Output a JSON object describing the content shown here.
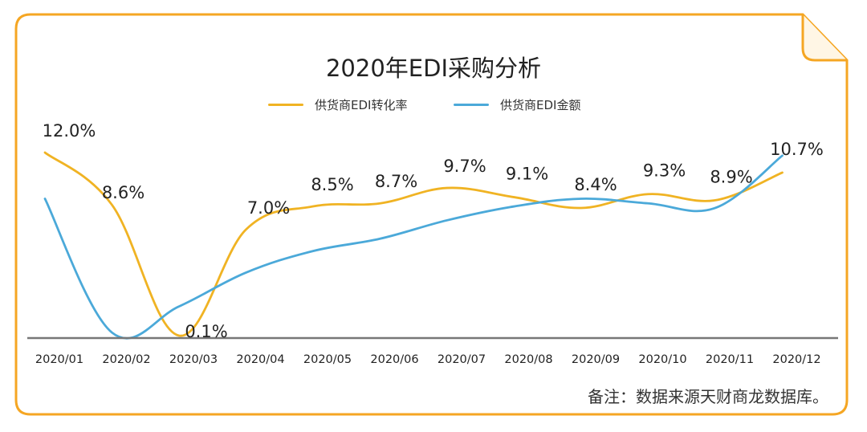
{
  "chart_data": {
    "type": "line",
    "title": "2020年EDI采购分析",
    "categories": [
      "2020/01",
      "2020/02",
      "2020/03",
      "2020/04",
      "2020/05",
      "2020/06",
      "2020/07",
      "2020/08",
      "2020/09",
      "2020/10",
      "2020/11",
      "2020/12"
    ],
    "series": [
      {
        "name": "供货商EDI转化率",
        "color": "#F0B323",
        "values": [
          12.0,
          8.6,
          0.1,
          7.0,
          8.5,
          8.7,
          9.7,
          9.1,
          8.4,
          9.3,
          8.9,
          10.7
        ],
        "labels": [
          "12.0%",
          "8.6%",
          "0.1%",
          "7.0%",
          "8.5%",
          "8.7%",
          "9.7%",
          "9.1%",
          "8.4%",
          "9.3%",
          "8.9%",
          "10.7%"
        ]
      },
      {
        "name": "供货商EDI金额",
        "color": "#4BA9D9",
        "values": [
          9.0,
          0.3,
          2.0,
          4.2,
          5.6,
          6.4,
          7.6,
          8.5,
          9.0,
          8.7,
          8.4,
          11.8
        ]
      }
    ],
    "xlabel": "",
    "ylabel": "",
    "ylim": [
      -0.5,
      13.5
    ],
    "legend": "top-center",
    "grid": false
  },
  "note": "备注：数据来源天财商龙数据库。"
}
